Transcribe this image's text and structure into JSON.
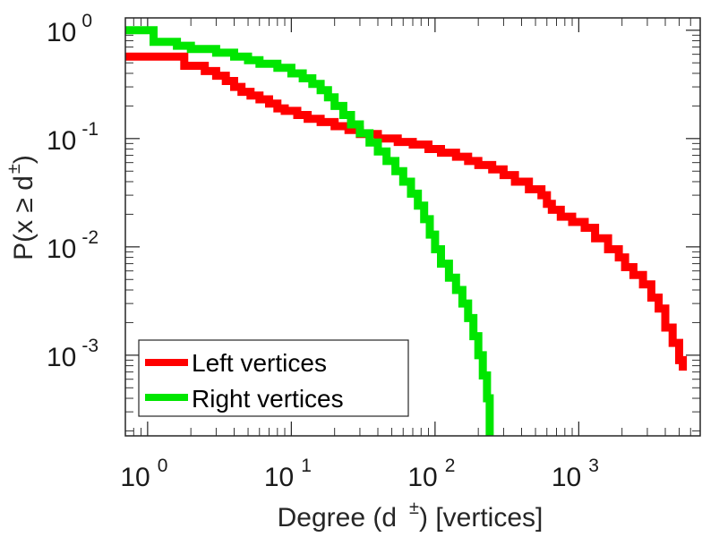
{
  "chart_data": {
    "type": "line",
    "scale": "log-log",
    "step": true,
    "xlabel": "Degree (d",
    "xlabel_sup": "±",
    "xlabel_suffix": ") [vertices]",
    "ylabel": "P(x ≥ d",
    "ylabel_sup": "±",
    "ylabel_suffix": ")",
    "xlim": [
      0.7,
      7000
    ],
    "ylim": [
      0.00018,
      1.3
    ],
    "x_ticks": [
      {
        "value": 1,
        "base": "10",
        "exp": "0"
      },
      {
        "value": 10,
        "base": "10",
        "exp": "1"
      },
      {
        "value": 100,
        "base": "10",
        "exp": "2"
      },
      {
        "value": 1000,
        "base": "10",
        "exp": "3"
      }
    ],
    "y_ticks": [
      {
        "value": 1,
        "base": "10",
        "exp": "0"
      },
      {
        "value": 0.1,
        "base": "10",
        "exp": "-1"
      },
      {
        "value": 0.01,
        "base": "10",
        "exp": "-2"
      },
      {
        "value": 0.001,
        "base": "10",
        "exp": "-3"
      }
    ],
    "legend_position": "bottom-left",
    "series": [
      {
        "name": "Left vertices",
        "color": "#ff0000",
        "points": [
          [
            0.7,
            0.57
          ],
          [
            1,
            0.57
          ],
          [
            1.8,
            0.57
          ],
          [
            1.8,
            0.47
          ],
          [
            2.5,
            0.47
          ],
          [
            2.5,
            0.42
          ],
          [
            3,
            0.42
          ],
          [
            3,
            0.38
          ],
          [
            3.5,
            0.38
          ],
          [
            3.5,
            0.34
          ],
          [
            4,
            0.34
          ],
          [
            4,
            0.3
          ],
          [
            4.5,
            0.3
          ],
          [
            4.5,
            0.27
          ],
          [
            5.2,
            0.27
          ],
          [
            5.2,
            0.25
          ],
          [
            6,
            0.25
          ],
          [
            6,
            0.23
          ],
          [
            7,
            0.23
          ],
          [
            7,
            0.21
          ],
          [
            8,
            0.21
          ],
          [
            8,
            0.19
          ],
          [
            9,
            0.19
          ],
          [
            9,
            0.18
          ],
          [
            11,
            0.18
          ],
          [
            11,
            0.165
          ],
          [
            13,
            0.165
          ],
          [
            13,
            0.152
          ],
          [
            16,
            0.152
          ],
          [
            16,
            0.142
          ],
          [
            20,
            0.142
          ],
          [
            20,
            0.13
          ],
          [
            25,
            0.13
          ],
          [
            25,
            0.12
          ],
          [
            30,
            0.12
          ],
          [
            30,
            0.11
          ],
          [
            40,
            0.11
          ],
          [
            40,
            0.1
          ],
          [
            55,
            0.1
          ],
          [
            55,
            0.093
          ],
          [
            70,
            0.093
          ],
          [
            70,
            0.088
          ],
          [
            90,
            0.088
          ],
          [
            90,
            0.08
          ],
          [
            110,
            0.08
          ],
          [
            110,
            0.074
          ],
          [
            140,
            0.074
          ],
          [
            140,
            0.068
          ],
          [
            170,
            0.068
          ],
          [
            170,
            0.062
          ],
          [
            200,
            0.062
          ],
          [
            200,
            0.057
          ],
          [
            250,
            0.057
          ],
          [
            250,
            0.052
          ],
          [
            300,
            0.052
          ],
          [
            300,
            0.046
          ],
          [
            360,
            0.046
          ],
          [
            360,
            0.04
          ],
          [
            450,
            0.04
          ],
          [
            450,
            0.034
          ],
          [
            550,
            0.034
          ],
          [
            550,
            0.03
          ],
          [
            600,
            0.03
          ],
          [
            600,
            0.025
          ],
          [
            650,
            0.025
          ],
          [
            650,
            0.022
          ],
          [
            750,
            0.022
          ],
          [
            750,
            0.019
          ],
          [
            900,
            0.019
          ],
          [
            900,
            0.017
          ],
          [
            1100,
            0.017
          ],
          [
            1100,
            0.015
          ],
          [
            1300,
            0.015
          ],
          [
            1300,
            0.012
          ],
          [
            1600,
            0.012
          ],
          [
            1600,
            0.0095
          ],
          [
            1900,
            0.0095
          ],
          [
            1900,
            0.008
          ],
          [
            2100,
            0.008
          ],
          [
            2100,
            0.0065
          ],
          [
            2400,
            0.0065
          ],
          [
            2400,
            0.0055
          ],
          [
            2800,
            0.0055
          ],
          [
            2800,
            0.0045
          ],
          [
            3200,
            0.0045
          ],
          [
            3200,
            0.0034
          ],
          [
            3600,
            0.0034
          ],
          [
            3600,
            0.0027
          ],
          [
            4000,
            0.0027
          ],
          [
            4000,
            0.0018
          ],
          [
            4500,
            0.0018
          ],
          [
            4500,
            0.0013
          ],
          [
            5000,
            0.0013
          ],
          [
            5000,
            0.0009
          ],
          [
            5300,
            0.0009
          ],
          [
            5300,
            0.00072
          ]
        ]
      },
      {
        "name": "Right vertices",
        "color": "#00e600",
        "points": [
          [
            0.7,
            1.0
          ],
          [
            1.1,
            1.0
          ],
          [
            1.1,
            0.78
          ],
          [
            1.6,
            0.78
          ],
          [
            1.6,
            0.72
          ],
          [
            2,
            0.72
          ],
          [
            2,
            0.67
          ],
          [
            3,
            0.67
          ],
          [
            3,
            0.62
          ],
          [
            4,
            0.62
          ],
          [
            4,
            0.57
          ],
          [
            5,
            0.57
          ],
          [
            5,
            0.53
          ],
          [
            6,
            0.53
          ],
          [
            6,
            0.49
          ],
          [
            8,
            0.49
          ],
          [
            8,
            0.45
          ],
          [
            10,
            0.45
          ],
          [
            10,
            0.4
          ],
          [
            12,
            0.4
          ],
          [
            12,
            0.36
          ],
          [
            14,
            0.36
          ],
          [
            14,
            0.32
          ],
          [
            16,
            0.32
          ],
          [
            16,
            0.28
          ],
          [
            18,
            0.28
          ],
          [
            18,
            0.24
          ],
          [
            20,
            0.24
          ],
          [
            20,
            0.2
          ],
          [
            23,
            0.2
          ],
          [
            23,
            0.165
          ],
          [
            26,
            0.165
          ],
          [
            26,
            0.135
          ],
          [
            30,
            0.135
          ],
          [
            30,
            0.112
          ],
          [
            35,
            0.112
          ],
          [
            35,
            0.092
          ],
          [
            40,
            0.092
          ],
          [
            40,
            0.076
          ],
          [
            46,
            0.076
          ],
          [
            46,
            0.062
          ],
          [
            53,
            0.062
          ],
          [
            53,
            0.05
          ],
          [
            60,
            0.05
          ],
          [
            60,
            0.04
          ],
          [
            68,
            0.04
          ],
          [
            68,
            0.031
          ],
          [
            76,
            0.031
          ],
          [
            76,
            0.024
          ],
          [
            84,
            0.024
          ],
          [
            84,
            0.018
          ],
          [
            92,
            0.018
          ],
          [
            92,
            0.013
          ],
          [
            100,
            0.013
          ],
          [
            100,
            0.0095
          ],
          [
            110,
            0.0095
          ],
          [
            110,
            0.007
          ],
          [
            125,
            0.007
          ],
          [
            125,
            0.0052
          ],
          [
            140,
            0.0052
          ],
          [
            140,
            0.004
          ],
          [
            155,
            0.004
          ],
          [
            155,
            0.003
          ],
          [
            170,
            0.003
          ],
          [
            170,
            0.0022
          ],
          [
            185,
            0.0022
          ],
          [
            185,
            0.0015
          ],
          [
            200,
            0.0015
          ],
          [
            200,
            0.001
          ],
          [
            215,
            0.001
          ],
          [
            215,
            0.00065
          ],
          [
            230,
            0.00065
          ],
          [
            230,
            0.0004
          ],
          [
            240,
            0.0004
          ],
          [
            240,
            0.00018
          ]
        ]
      }
    ]
  }
}
